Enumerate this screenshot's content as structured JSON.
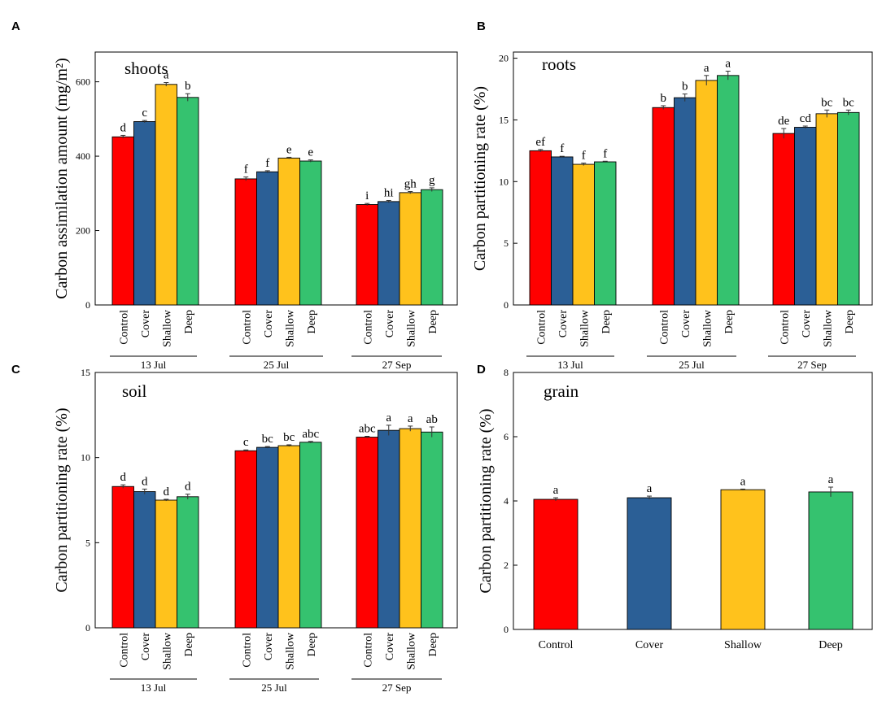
{
  "legend_colors": {
    "Control": "#ff0000",
    "Cover": "#2b5f96",
    "Shallow": "#ffc21c",
    "Deep": "#35c26f"
  },
  "chart_data": [
    {
      "panel": "A",
      "type": "bar",
      "title": "shoots",
      "ylabel": "Carbon assimilation amount (mg/m²)",
      "ylim": [
        0,
        680
      ],
      "yticks": [
        0,
        200,
        400,
        600
      ],
      "treatments": [
        "Control",
        "Cover",
        "Shallow",
        "Deep"
      ],
      "groups": [
        "13 Jul",
        "25 Jul",
        "27 Sep"
      ],
      "series": [
        {
          "name": "Control",
          "values": [
            452,
            339,
            270
          ],
          "errors": [
            4,
            5,
            3
          ],
          "letters": [
            "d",
            "f",
            "i"
          ]
        },
        {
          "name": "Cover",
          "values": [
            493,
            358,
            278
          ],
          "errors": [
            3,
            3,
            3
          ],
          "letters": [
            "c",
            "f",
            "hi"
          ]
        },
        {
          "name": "Shallow",
          "values": [
            593,
            395,
            302
          ],
          "errors": [
            5,
            2,
            3
          ],
          "letters": [
            "a",
            "e",
            "gh"
          ]
        },
        {
          "name": "Deep",
          "values": [
            558,
            387,
            310
          ],
          "errors": [
            10,
            3,
            5
          ],
          "letters": [
            "b",
            "e",
            "g"
          ]
        }
      ]
    },
    {
      "panel": "B",
      "type": "bar",
      "title": "roots",
      "ylabel": "Carbon partitioning rate (%)",
      "ylim": [
        0,
        20.5
      ],
      "yticks": [
        0,
        5,
        10,
        15,
        20
      ],
      "treatments": [
        "Control",
        "Cover",
        "Shallow",
        "Deep"
      ],
      "groups": [
        "13 Jul",
        "25 Jul",
        "27 Sep"
      ],
      "series": [
        {
          "name": "Control",
          "values": [
            12.5,
            16.0,
            13.9
          ],
          "errors": [
            0.1,
            0.15,
            0.4
          ],
          "letters": [
            "ef",
            "b",
            "de"
          ]
        },
        {
          "name": "Cover",
          "values": [
            12.0,
            16.8,
            14.4
          ],
          "errors": [
            0.05,
            0.3,
            0.1
          ],
          "letters": [
            "f",
            "b",
            "cd"
          ]
        },
        {
          "name": "Shallow",
          "values": [
            11.4,
            18.2,
            15.5
          ],
          "errors": [
            0.1,
            0.4,
            0.3
          ],
          "letters": [
            "f",
            "a",
            "bc"
          ]
        },
        {
          "name": "Deep",
          "values": [
            11.6,
            18.6,
            15.6
          ],
          "errors": [
            0.05,
            0.35,
            0.2
          ],
          "letters": [
            "f",
            "a",
            "bc"
          ]
        }
      ]
    },
    {
      "panel": "C",
      "type": "bar",
      "title": "soil",
      "ylabel": "Carbon partitioning rate (%)",
      "ylim": [
        0,
        15
      ],
      "yticks": [
        0,
        5,
        10,
        15
      ],
      "treatments": [
        "Control",
        "Cover",
        "Shallow",
        "Deep"
      ],
      "groups": [
        "13 Jul",
        "25 Jul",
        "27 Sep"
      ],
      "series": [
        {
          "name": "Control",
          "values": [
            8.3,
            10.4,
            11.2
          ],
          "errors": [
            0.1,
            0.05,
            0.05
          ],
          "letters": [
            "d",
            "c",
            "abc"
          ]
        },
        {
          "name": "Cover",
          "values": [
            8.0,
            10.6,
            11.6
          ],
          "errors": [
            0.15,
            0.05,
            0.3
          ],
          "letters": [
            "d",
            "bc",
            "a"
          ]
        },
        {
          "name": "Shallow",
          "values": [
            7.5,
            10.7,
            11.7
          ],
          "errors": [
            0.05,
            0.05,
            0.15
          ],
          "letters": [
            "d",
            "bc",
            "a"
          ]
        },
        {
          "name": "Deep",
          "values": [
            7.7,
            10.9,
            11.5
          ],
          "errors": [
            0.15,
            0.05,
            0.3
          ],
          "letters": [
            "d",
            "abc",
            "ab"
          ]
        }
      ]
    },
    {
      "panel": "D",
      "type": "bar",
      "title": "grain",
      "ylabel": "Carbon partitioning rate (%)",
      "ylim": [
        0,
        8
      ],
      "yticks": [
        0,
        2,
        4,
        6,
        8
      ],
      "treatments": [
        "Control",
        "Cover",
        "Shallow",
        "Deep"
      ],
      "values": [
        4.05,
        4.1,
        4.35,
        4.28
      ],
      "errors": [
        0.05,
        0.05,
        0.02,
        0.15
      ],
      "letters": [
        "a",
        "a",
        "a",
        "a"
      ]
    }
  ]
}
